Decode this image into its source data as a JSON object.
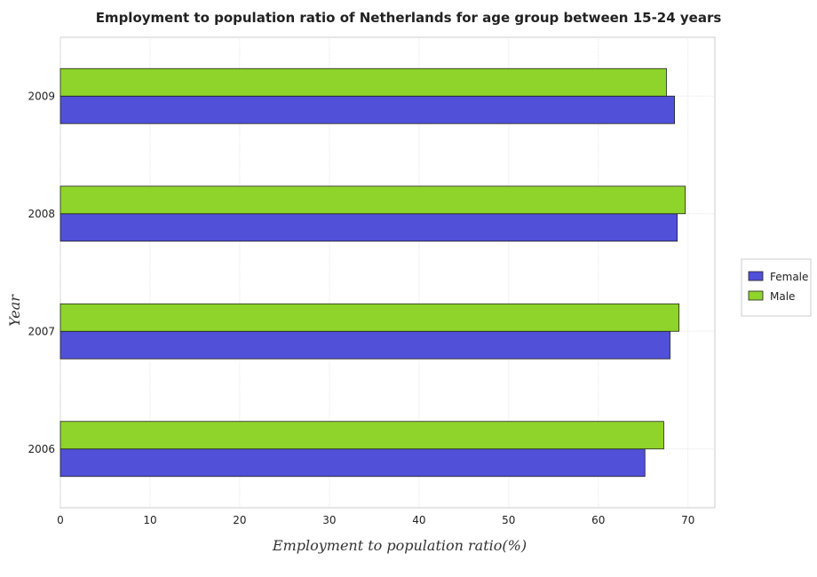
{
  "chart_data": {
    "type": "bar",
    "orientation": "horizontal",
    "title": "Employment to population ratio of Netherlands for age group between 15-24 years",
    "xlabel": "Employment to population ratio(%)",
    "ylabel": "Year",
    "categories": [
      "2006",
      "2007",
      "2008",
      "2009"
    ],
    "series": [
      {
        "name": "Female",
        "color": "#5050d8",
        "values": [
          65.2,
          68.0,
          68.8,
          68.5
        ]
      },
      {
        "name": "Male",
        "color": "#8fd42a",
        "values": [
          67.3,
          69.0,
          69.7,
          67.6
        ]
      }
    ],
    "xlim": [
      0,
      73
    ],
    "xticks": [
      0,
      10,
      20,
      30,
      40,
      50,
      60,
      70
    ],
    "grid": true,
    "legend_position": "right"
  }
}
